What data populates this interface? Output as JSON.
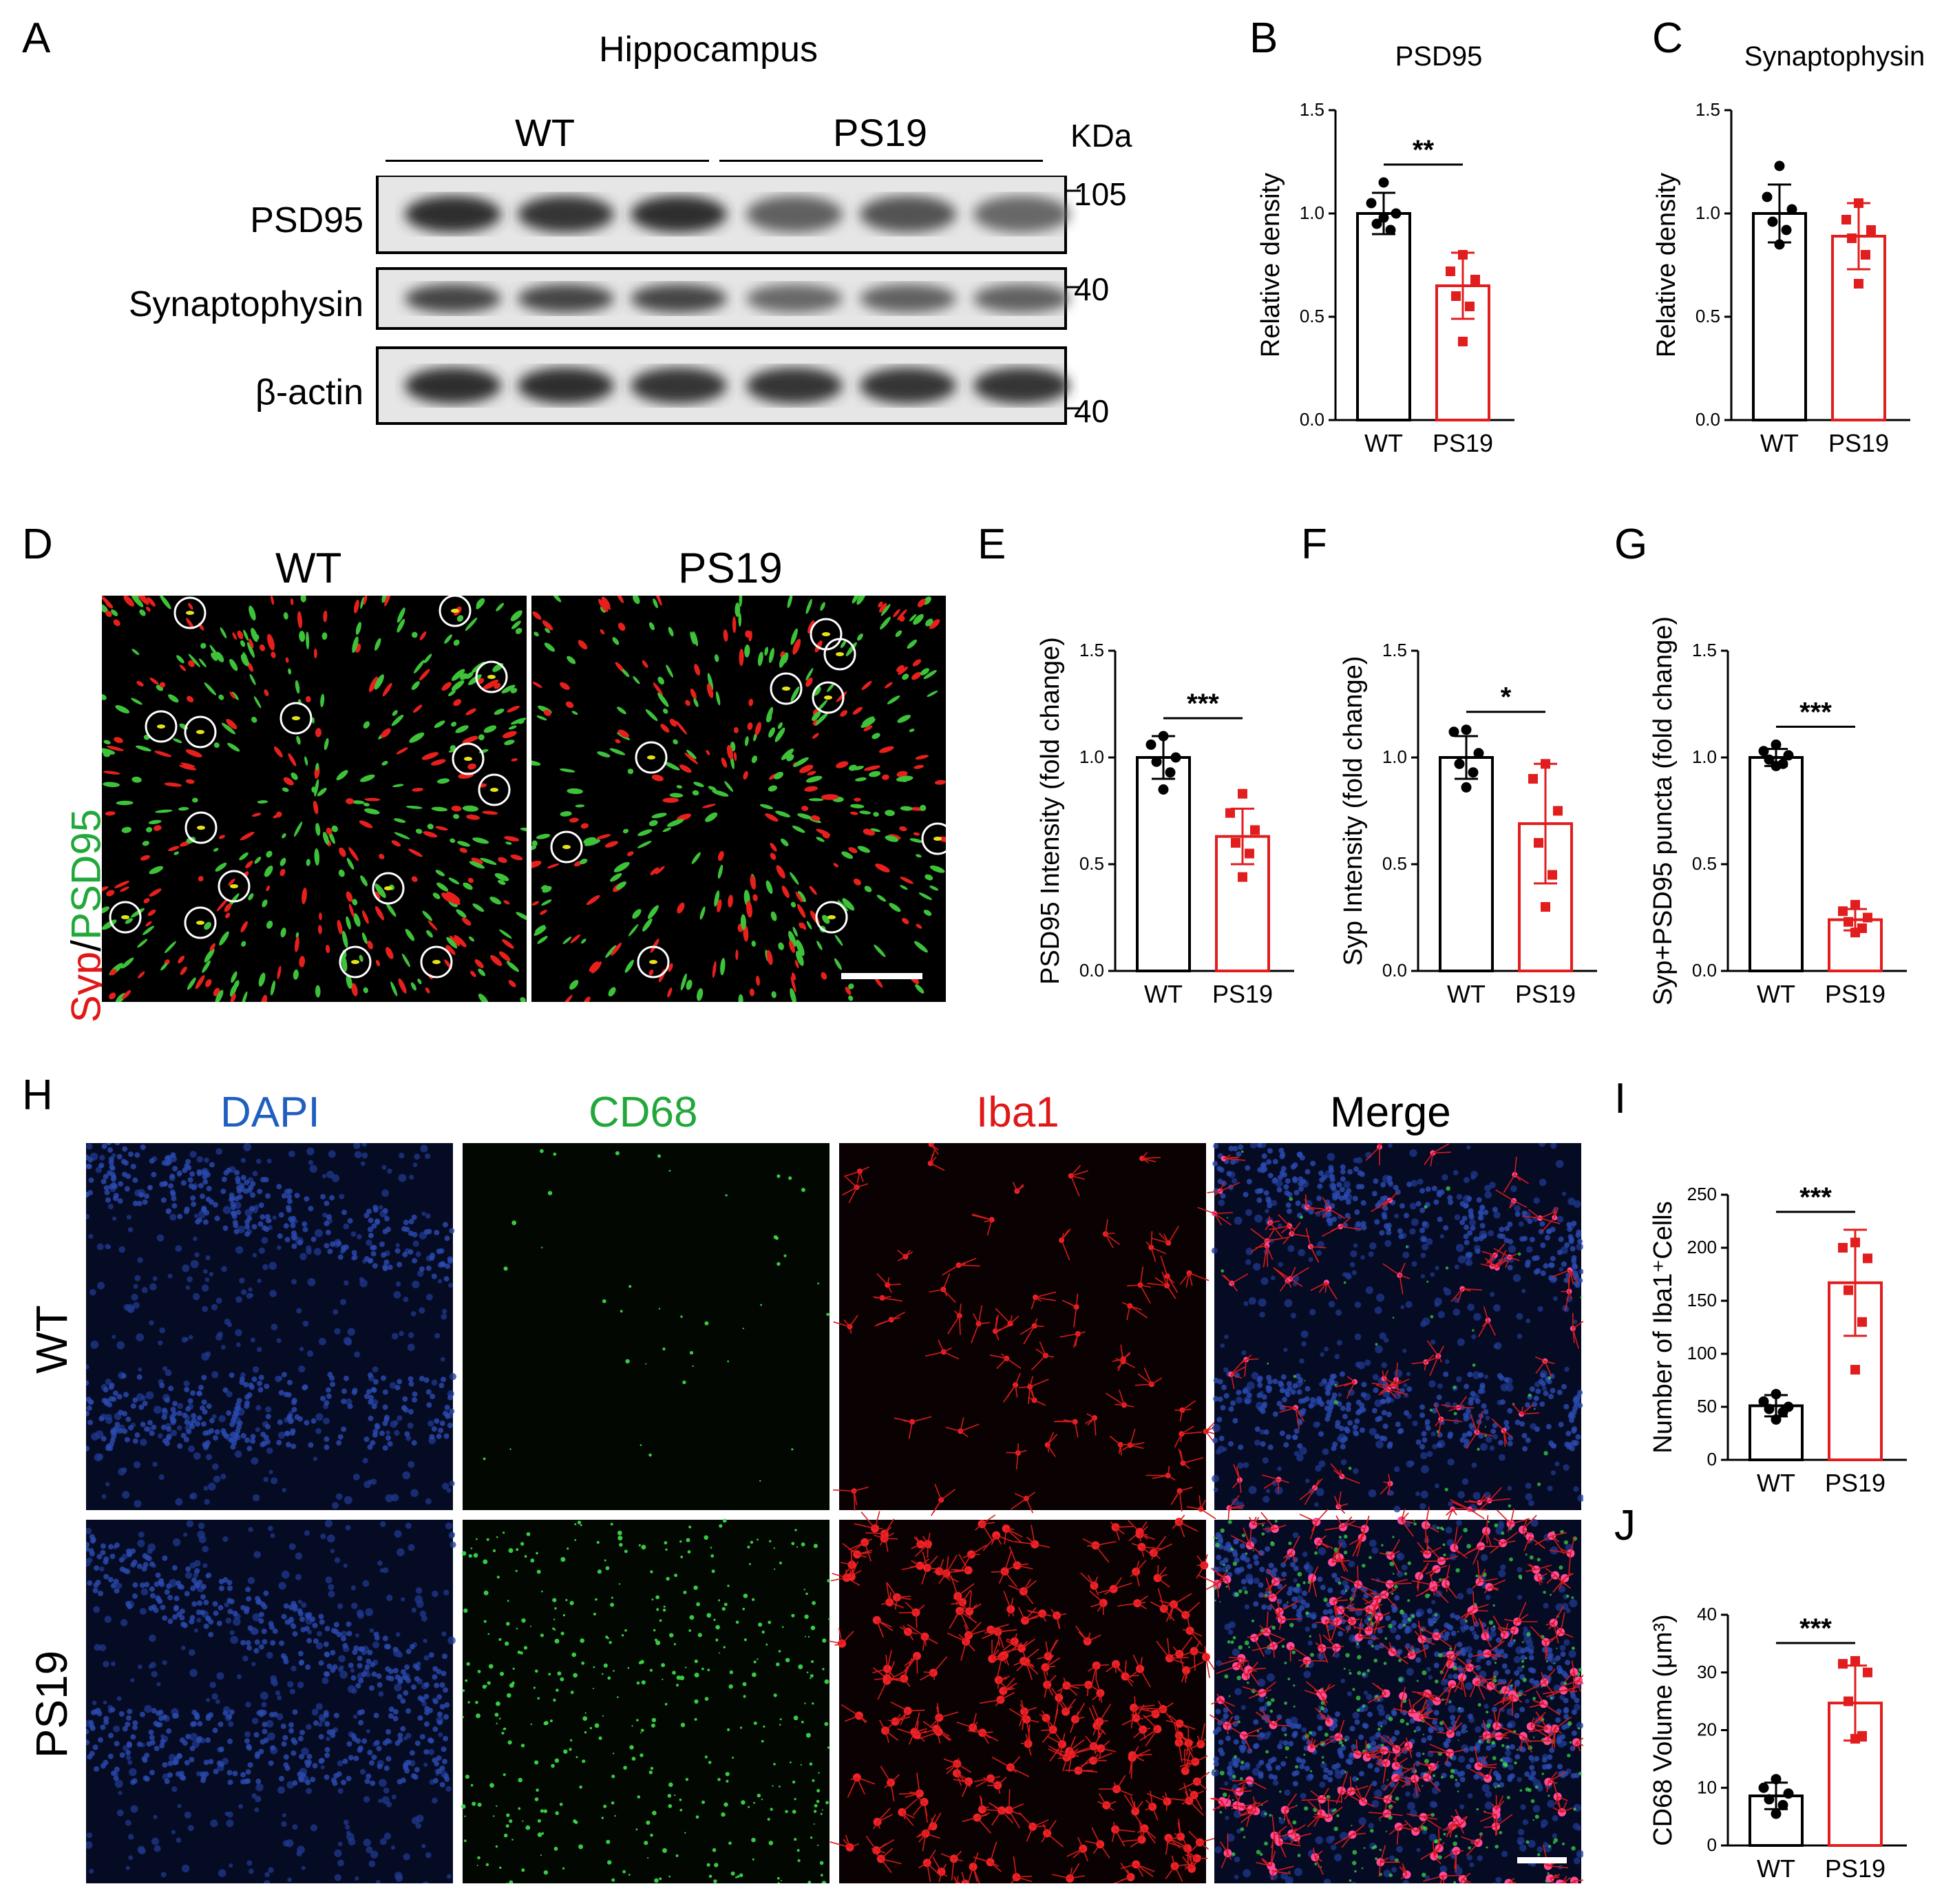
{
  "panel_labels": {
    "A": "A",
    "B": "B",
    "C": "C",
    "D": "D",
    "E": "E",
    "F": "F",
    "G": "G",
    "H": "H",
    "I": "I",
    "J": "J"
  },
  "western": {
    "title": "Hippocampus",
    "group_wt": "WT",
    "group_ps19": "PS19",
    "kda_label": "KDa",
    "bands": [
      {
        "name": "PSD95",
        "marker": "105",
        "intensity": [
          0.95,
          0.9,
          0.95,
          0.6,
          0.7,
          0.55
        ]
      },
      {
        "name": "Synaptophysin",
        "marker": "40",
        "intensity": [
          0.8,
          0.8,
          0.8,
          0.55,
          0.6,
          0.6
        ]
      },
      {
        "name": "β-actin",
        "marker": "40",
        "intensity": [
          0.95,
          0.95,
          0.9,
          0.9,
          0.9,
          0.9
        ]
      }
    ]
  },
  "fluor_D": {
    "channel_a": "Syp",
    "slash": "/",
    "channel_b": "PSD95",
    "col_wt": "WT",
    "col_ps19": "PS19"
  },
  "fluor_H": {
    "col_labels": [
      "DAPI",
      "CD68",
      "Iba1",
      "Merge"
    ],
    "col_colors": [
      "#1f5fbf",
      "#22a83a",
      "#e01818",
      "#000000"
    ],
    "row_labels": [
      "WT",
      "PS19"
    ]
  },
  "colors": {
    "wt": "#000000",
    "ps19": "#e21d1d"
  },
  "chart_data": [
    {
      "id": "B",
      "type": "bar",
      "title": "PSD95",
      "ylabel": "Relative density",
      "categories": [
        "WT",
        "PS19"
      ],
      "ylim": [
        0,
        1.5
      ],
      "yticks": [
        "0.0",
        "0.5",
        "1.0",
        "1.5"
      ],
      "values": [
        1.0,
        0.65
      ],
      "errors": [
        0.1,
        0.16
      ],
      "points": [
        [
          1.15,
          1.05,
          1.0,
          0.95,
          0.92,
          0.98
        ],
        [
          0.8,
          0.72,
          0.68,
          0.6,
          0.55,
          0.38
        ]
      ],
      "sig": "**"
    },
    {
      "id": "C",
      "type": "bar",
      "title": "Synaptophysin",
      "ylabel": "Relative density",
      "categories": [
        "WT",
        "PS19"
      ],
      "ylim": [
        0,
        1.5
      ],
      "yticks": [
        "0.0",
        "0.5",
        "1.0",
        "1.5"
      ],
      "values": [
        1.0,
        0.89
      ],
      "errors": [
        0.14,
        0.16
      ],
      "points": [
        [
          1.23,
          1.08,
          1.02,
          0.96,
          0.92,
          0.85
        ],
        [
          1.05,
          0.97,
          0.92,
          0.88,
          0.8,
          0.66
        ]
      ],
      "sig": ""
    },
    {
      "id": "E",
      "type": "bar",
      "title": "",
      "ylabel": "PSD95 Intensity (fold change)",
      "categories": [
        "WT",
        "PS19"
      ],
      "ylim": [
        0,
        1.5
      ],
      "yticks": [
        "0.0",
        "0.5",
        "1.0",
        "1.5"
      ],
      "values": [
        1.0,
        0.63
      ],
      "errors": [
        0.1,
        0.13
      ],
      "points": [
        [
          1.1,
          1.06,
          1.0,
          0.98,
          0.93,
          0.85
        ],
        [
          0.83,
          0.74,
          0.66,
          0.6,
          0.55,
          0.44
        ]
      ],
      "sig": "***"
    },
    {
      "id": "F",
      "type": "bar",
      "title": "",
      "ylabel": "Syp Intensity (fold change)",
      "categories": [
        "WT",
        "PS19"
      ],
      "ylim": [
        0,
        1.5
      ],
      "yticks": [
        "0.0",
        "0.5",
        "1.0",
        "1.5"
      ],
      "values": [
        1.0,
        0.69
      ],
      "errors": [
        0.1,
        0.28
      ],
      "points": [
        [
          1.13,
          1.12,
          1.02,
          0.97,
          0.93,
          0.86
        ],
        [
          0.97,
          0.9,
          0.75,
          0.6,
          0.45,
          0.3
        ]
      ],
      "sig": "*"
    },
    {
      "id": "G",
      "type": "bar",
      "title": "",
      "ylabel": "Syp+PSD95 puncta (fold change)",
      "categories": [
        "WT",
        "PS19"
      ],
      "ylim": [
        0,
        1.5
      ],
      "yticks": [
        "0.0",
        "0.5",
        "1.0",
        "1.5"
      ],
      "values": [
        1.0,
        0.24
      ],
      "errors": [
        0.04,
        0.05
      ],
      "points": [
        [
          1.06,
          1.03,
          1.01,
          0.99,
          0.97,
          0.96
        ],
        [
          0.31,
          0.28,
          0.25,
          0.23,
          0.2,
          0.18
        ]
      ],
      "sig": "***"
    },
    {
      "id": "I",
      "type": "bar",
      "title": "",
      "ylabel": "Number of Iba1⁺Cells",
      "categories": [
        "WT",
        "PS19"
      ],
      "ylim": [
        0,
        250
      ],
      "yticks": [
        "0",
        "50",
        "100",
        "150",
        "200",
        "250"
      ],
      "values": [
        51,
        167
      ],
      "errors": [
        10,
        50
      ],
      "points": [
        [
          62,
          55,
          50,
          48,
          45,
          38
        ],
        [
          205,
          200,
          190,
          160,
          130,
          85
        ]
      ],
      "sig": "***"
    },
    {
      "id": "J",
      "type": "bar",
      "title": "",
      "ylabel": "CD68 Volume (μm³)",
      "categories": [
        "WT",
        "PS19"
      ],
      "ylim": [
        0,
        40
      ],
      "yticks": [
        "0",
        "10",
        "20",
        "30",
        "40"
      ],
      "values": [
        8.6,
        24.7
      ],
      "errors": [
        2.3,
        6.5
      ],
      "points": [
        [
          11.5,
          10,
          9,
          8,
          7,
          5.5
        ],
        [
          32,
          31.5,
          30,
          25,
          19,
          18.5
        ]
      ],
      "sig": "***"
    }
  ]
}
